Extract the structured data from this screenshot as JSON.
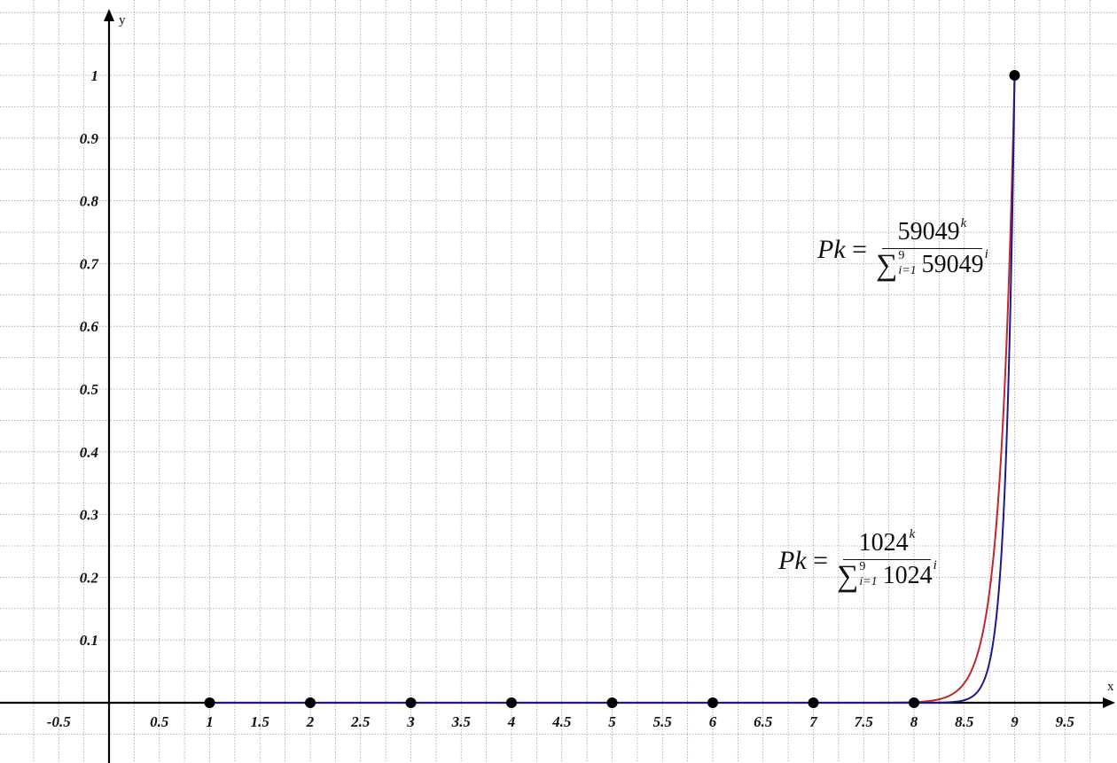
{
  "chart_data": {
    "type": "line",
    "xlabel": "x",
    "ylabel": "y",
    "xlim": [
      -0.85,
      9.95
    ],
    "ylim": [
      -0.1,
      1.1
    ],
    "x_ticks": [
      "-0.5",
      "0.5",
      "1",
      "1.5",
      "2",
      "2.5",
      "3",
      "3.5",
      "4",
      "4.5",
      "5",
      "5.5",
      "6",
      "6.5",
      "7",
      "7.5",
      "8",
      "8.5",
      "9",
      "9.5"
    ],
    "y_ticks": [
      "0.1",
      "0.2",
      "0.3",
      "0.4",
      "0.5",
      "0.6",
      "0.7",
      "0.8",
      "0.9",
      "1"
    ],
    "grid": true,
    "series": [
      {
        "base": 1024,
        "color": "#c0262a",
        "formula": {
          "lhs": "Pk",
          "num_base": "1024",
          "num_exp": "k",
          "sum_upper": "9",
          "sum_lower": "i=1",
          "den_base": "1024",
          "den_exp": "i"
        }
      },
      {
        "base": 59049,
        "color": "#1a1a8c",
        "formula": {
          "lhs": "Pk",
          "num_base": "59049",
          "num_exp": "k",
          "sum_upper": "9",
          "sum_lower": "i=1",
          "den_base": "59049",
          "den_exp": "i"
        }
      }
    ],
    "points": [
      {
        "x": 1,
        "y": 0
      },
      {
        "x": 2,
        "y": 0
      },
      {
        "x": 3,
        "y": 0
      },
      {
        "x": 4,
        "y": 0
      },
      {
        "x": 5,
        "y": 0
      },
      {
        "x": 6,
        "y": 0
      },
      {
        "x": 7,
        "y": 0
      },
      {
        "x": 8,
        "y": 0
      },
      {
        "x": 9,
        "y": 1
      }
    ]
  }
}
